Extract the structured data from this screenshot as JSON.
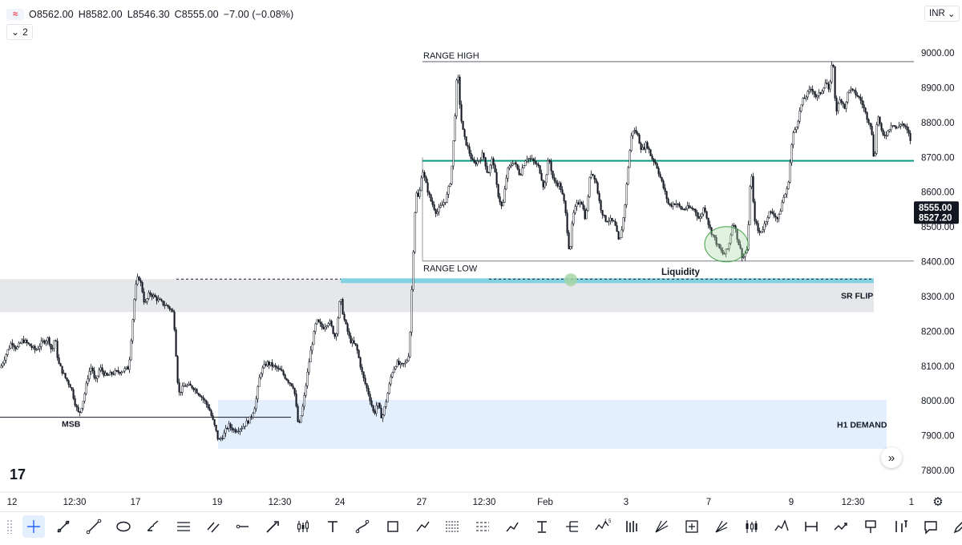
{
  "legend": {
    "open": "O8562.00",
    "high": "H8582.00",
    "low": "L8546.30",
    "close": "C8555.00",
    "change": "−7.00 (−0.08%)",
    "indicator_count": "2"
  },
  "currency": "INR",
  "colors": {
    "up_candle": "#131722",
    "down_candle": "#131722",
    "key_level": "#089981",
    "range_lines": "#9598a1",
    "sr_zone": "#e6e7ea",
    "sr_flip_line": "#72cde0",
    "demand_zone": "#e3effd",
    "sweep_marker": "#a5d6a7",
    "price_label": "#131722"
  },
  "icons": [
    "tradingview-logo-icon",
    "chevron-down-icon",
    "settings-gear-icon",
    "scroll-right-icon"
  ],
  "chart_data": {
    "type": "candlestick",
    "x_tick_labels": [
      "12",
      "12:30",
      "17",
      "19",
      "12:30",
      "24",
      "27",
      "12:30",
      "Feb",
      "3",
      "7",
      "9",
      "12:30",
      "1"
    ],
    "y_tick_labels": [
      "9000.00",
      "8900.00",
      "8800.00",
      "8700.00",
      "8600.00",
      "8500.00",
      "8400.00",
      "8300.00",
      "8200.00",
      "8100.00",
      "8000.00",
      "7900.00",
      "7800.00"
    ],
    "ylim": [
      7750,
      9130
    ],
    "price_labels": [
      {
        "value": "8555.00",
        "price": 8555
      },
      {
        "value": "8527.20",
        "price": 8527.2
      }
    ],
    "annotations": [
      {
        "text": "RANGE HIGH",
        "price": 8975
      },
      {
        "text": "RANGE LOW",
        "price": 8402
      },
      {
        "text": "Liquidity",
        "price": 8350
      },
      {
        "text": "SR FLIP",
        "price_top": 8350,
        "price_bottom": 8255
      },
      {
        "text": "H1 DEMAND",
        "price_top": 8003,
        "price_bottom": 7862
      },
      {
        "text": "MSB",
        "price": 7953
      }
    ],
    "levels": {
      "key_level": 8690,
      "range_high": 8975,
      "range_low": 8402,
      "liquidity": 8350,
      "sr_flip": [
        8255,
        8350
      ],
      "h1_demand": [
        7862,
        8003
      ],
      "msb": 7953
    },
    "path": [
      [
        0,
        8095
      ],
      [
        8,
        8140
      ],
      [
        14,
        8170
      ],
      [
        20,
        8150
      ],
      [
        28,
        8175
      ],
      [
        36,
        8160
      ],
      [
        44,
        8145
      ],
      [
        52,
        8168
      ],
      [
        60,
        8180
      ],
      [
        64,
        8140
      ],
      [
        68,
        8185
      ],
      [
        72,
        8110
      ],
      [
        80,
        8070
      ],
      [
        88,
        8040
      ],
      [
        94,
        7985
      ],
      [
        98,
        7960
      ],
      [
        104,
        8010
      ],
      [
        110,
        8080
      ],
      [
        114,
        8100
      ],
      [
        118,
        8050
      ],
      [
        124,
        8095
      ],
      [
        132,
        8070
      ],
      [
        140,
        8080
      ],
      [
        150,
        8085
      ],
      [
        160,
        8095
      ],
      [
        168,
        8320
      ],
      [
        172,
        8360
      ],
      [
        176,
        8330
      ],
      [
        180,
        8275
      ],
      [
        186,
        8310
      ],
      [
        194,
        8295
      ],
      [
        202,
        8280
      ],
      [
        210,
        8270
      ],
      [
        216,
        8250
      ],
      [
        222,
        8020
      ],
      [
        230,
        8045
      ],
      [
        240,
        8040
      ],
      [
        250,
        8015
      ],
      [
        260,
        7980
      ],
      [
        268,
        7920
      ],
      [
        272,
        7885
      ],
      [
        278,
        7900
      ],
      [
        284,
        7930
      ],
      [
        292,
        7915
      ],
      [
        302,
        7925
      ],
      [
        312,
        7950
      ],
      [
        318,
        7990
      ],
      [
        324,
        8080
      ],
      [
        332,
        8110
      ],
      [
        340,
        8100
      ],
      [
        350,
        8085
      ],
      [
        358,
        8060
      ],
      [
        366,
        8040
      ],
      [
        372,
        7920
      ],
      [
        378,
        7995
      ],
      [
        386,
        8130
      ],
      [
        394,
        8230
      ],
      [
        402,
        8210
      ],
      [
        410,
        8230
      ],
      [
        418,
        8180
      ],
      [
        424,
        8300
      ],
      [
        428,
        8240
      ],
      [
        436,
        8175
      ],
      [
        444,
        8155
      ],
      [
        452,
        8070
      ],
      [
        460,
        8015
      ],
      [
        466,
        7960
      ],
      [
        470,
        7995
      ],
      [
        476,
        7950
      ],
      [
        482,
        8010
      ],
      [
        488,
        8080
      ],
      [
        494,
        8110
      ],
      [
        500,
        8100
      ],
      [
        506,
        8110
      ],
      [
        510,
        8140
      ],
      [
        514,
        8380
      ],
      [
        518,
        8600
      ],
      [
        522,
        8580
      ],
      [
        526,
        8670
      ],
      [
        530,
        8630
      ],
      [
        536,
        8580
      ],
      [
        544,
        8540
      ],
      [
        550,
        8560
      ],
      [
        556,
        8580
      ],
      [
        562,
        8640
      ],
      [
        566,
        8780
      ],
      [
        570,
        8960
      ],
      [
        574,
        8820
      ],
      [
        578,
        8760
      ],
      [
        584,
        8720
      ],
      [
        590,
        8680
      ],
      [
        596,
        8690
      ],
      [
        602,
        8710
      ],
      [
        608,
        8650
      ],
      [
        614,
        8700
      ],
      [
        620,
        8600
      ],
      [
        626,
        8550
      ],
      [
        632,
        8660
      ],
      [
        640,
        8690
      ],
      [
        648,
        8650
      ],
      [
        656,
        8700
      ],
      [
        664,
        8690
      ],
      [
        672,
        8670
      ],
      [
        678,
        8610
      ],
      [
        684,
        8700
      ],
      [
        690,
        8630
      ],
      [
        698,
        8620
      ],
      [
        704,
        8560
      ],
      [
        710,
        8420
      ],
      [
        714,
        8530
      ],
      [
        718,
        8560
      ],
      [
        724,
        8580
      ],
      [
        730,
        8520
      ],
      [
        736,
        8660
      ],
      [
        742,
        8640
      ],
      [
        748,
        8560
      ],
      [
        754,
        8520
      ],
      [
        760,
        8520
      ],
      [
        766,
        8510
      ],
      [
        772,
        8450
      ],
      [
        778,
        8540
      ],
      [
        784,
        8700
      ],
      [
        788,
        8780
      ],
      [
        794,
        8770
      ],
      [
        800,
        8720
      ],
      [
        806,
        8740
      ],
      [
        812,
        8700
      ],
      [
        818,
        8680
      ],
      [
        826,
        8620
      ],
      [
        834,
        8560
      ],
      [
        842,
        8570
      ],
      [
        850,
        8550
      ],
      [
        858,
        8555
      ],
      [
        866,
        8550
      ],
      [
        872,
        8520
      ],
      [
        878,
        8560
      ],
      [
        884,
        8500
      ],
      [
        890,
        8470
      ],
      [
        896,
        8440
      ],
      [
        902,
        8420
      ],
      [
        908,
        8440
      ],
      [
        914,
        8520
      ],
      [
        920,
        8460
      ],
      [
        926,
        8410
      ],
      [
        932,
        8440
      ],
      [
        936,
        8680
      ],
      [
        940,
        8530
      ],
      [
        946,
        8480
      ],
      [
        952,
        8500
      ],
      [
        958,
        8540
      ],
      [
        964,
        8540
      ],
      [
        970,
        8520
      ],
      [
        976,
        8580
      ],
      [
        982,
        8610
      ],
      [
        988,
        8760
      ],
      [
        994,
        8800
      ],
      [
        1000,
        8860
      ],
      [
        1006,
        8880
      ],
      [
        1012,
        8900
      ],
      [
        1018,
        8870
      ],
      [
        1024,
        8890
      ],
      [
        1030,
        8920
      ],
      [
        1034,
        8880
      ],
      [
        1038,
        9000
      ],
      [
        1042,
        8830
      ],
      [
        1048,
        8870
      ],
      [
        1054,
        8840
      ],
      [
        1058,
        8900
      ],
      [
        1062,
        8890
      ],
      [
        1068,
        8880
      ],
      [
        1074,
        8860
      ],
      [
        1080,
        8820
      ],
      [
        1086,
        8790
      ],
      [
        1090,
        8680
      ],
      [
        1094,
        8830
      ],
      [
        1100,
        8760
      ],
      [
        1106,
        8770
      ],
      [
        1112,
        8800
      ],
      [
        1118,
        8780
      ],
      [
        1124,
        8800
      ],
      [
        1130,
        8780
      ],
      [
        1134,
        8760
      ],
      [
        1136,
        8740
      ]
    ]
  },
  "toolbar": {
    "tools": [
      "crosshair-icon",
      "trend-angle-icon",
      "trend-line-icon",
      "ellipse-icon",
      "brush-icon",
      "parallel-channel-icon",
      "flat-channel-icon",
      "horizontal-ray-icon",
      "arrow-marker-icon",
      "candles-icon",
      "text-icon",
      "path-curve-icon",
      "rectangle-icon",
      "polyline-icon",
      "fib-retracement-icon",
      "fib-channel-icon",
      "trend-up-icon",
      "anchored-text-icon",
      "pitchfork-icon",
      "elliott-wave-icon",
      "bars-pattern-icon",
      "gann-fan-icon",
      "projection-icon",
      "fib-fan-icon",
      "candlestick-pattern-icon",
      "head-shoulders-icon",
      "date-range-icon",
      "forecast-icon",
      "flag-marker-icon",
      "price-range-icon",
      "comment-icon",
      "pencil-icon"
    ]
  }
}
